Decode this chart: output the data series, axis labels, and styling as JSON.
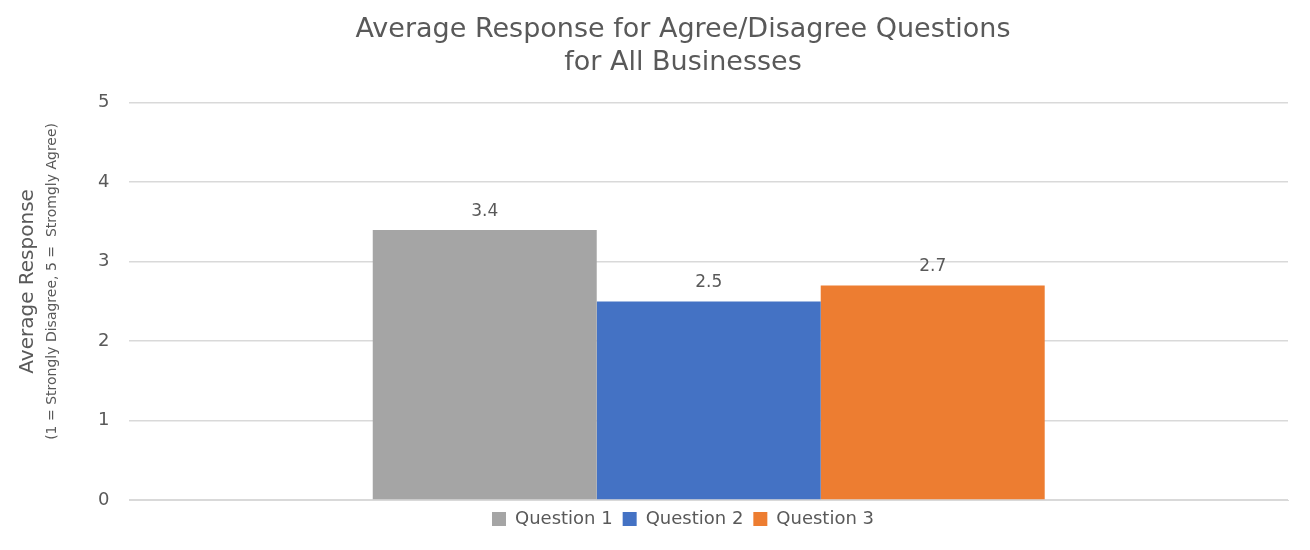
{
  "chart_data": {
    "type": "bar",
    "title": "Average Response for Agree/Disagree Questions\nfor All Businesses",
    "ylabel": "Average Response\n(1 = Strongly Disagree, 5 =  Stromgly Agree)",
    "categories": [
      null
    ],
    "series": [
      {
        "name": "Question 1",
        "color": "#a5a5a5",
        "values": [
          3.4
        ]
      },
      {
        "name": "Question 2",
        "color": "#4472c4",
        "values": [
          2.5
        ]
      },
      {
        "name": "Question 3",
        "color": "#ed7d31",
        "values": [
          2.7
        ]
      }
    ],
    "ylim": [
      0,
      5
    ],
    "yticks": [
      0,
      1,
      2,
      3,
      4,
      5
    ],
    "grid": "y",
    "legend": "bottom",
    "data_labels": true
  }
}
